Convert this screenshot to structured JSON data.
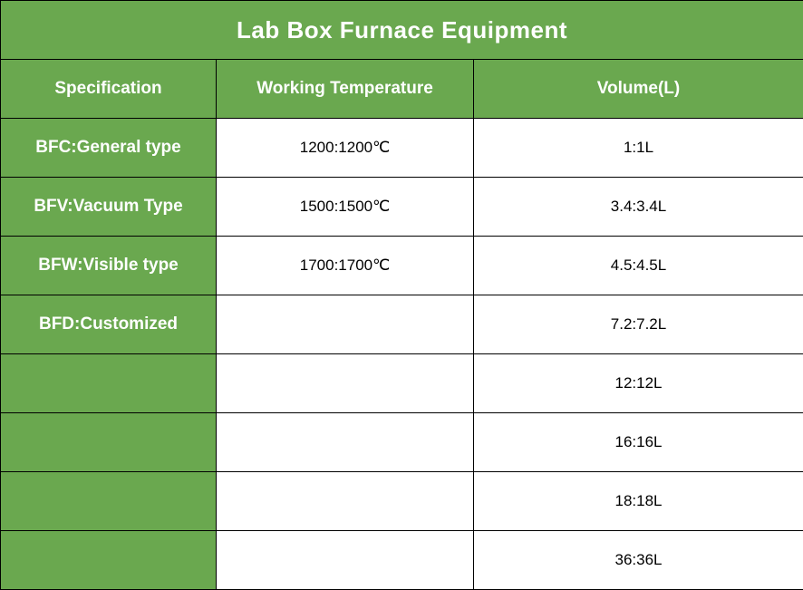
{
  "table": {
    "title": "Lab Box Furnace Equipment",
    "headers": [
      "Specification",
      "Working Temperature",
      "Volume(L)"
    ],
    "rows": [
      {
        "spec": "BFC:General type",
        "temperature": "1200:1200℃",
        "volume": "1:1L"
      },
      {
        "spec": "BFV:Vacuum Type",
        "temperature": "1500:1500℃",
        "volume": "3.4:3.4L"
      },
      {
        "spec": "BFW:Visible type",
        "temperature": "1700:1700℃",
        "volume": "4.5:4.5L"
      },
      {
        "spec": "BFD:Customized",
        "temperature": "",
        "volume": "7.2:7.2L"
      },
      {
        "spec": "",
        "temperature": "",
        "volume": "12:12L"
      },
      {
        "spec": "",
        "temperature": "",
        "volume": "16:16L"
      },
      {
        "spec": "",
        "temperature": "",
        "volume": "18:18L"
      },
      {
        "spec": "",
        "temperature": "",
        "volume": "36:36L"
      }
    ],
    "colors": {
      "header_green": "#6aa84f",
      "header_text": "#ffffff",
      "cell_background": "#ffffff",
      "border": "#000000"
    }
  }
}
